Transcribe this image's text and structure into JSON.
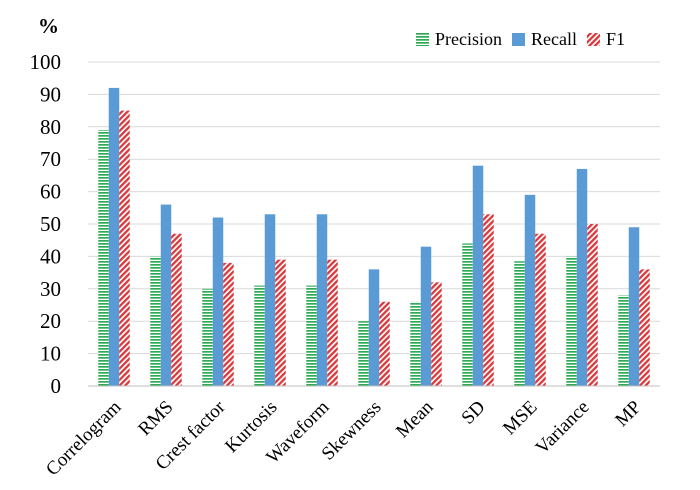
{
  "chart_data": {
    "type": "bar",
    "title": "",
    "xlabel": "",
    "ylabel": "%",
    "ylim": [
      0,
      100
    ],
    "yticks": [
      0,
      10,
      20,
      30,
      40,
      50,
      60,
      70,
      80,
      90,
      100
    ],
    "grid": "horizontal",
    "legend_position": "top-right",
    "categories": [
      "Correlogram",
      "RMS",
      "Crest factor",
      "Kurtosis",
      "Waveform",
      "Skewness",
      "Mean",
      "SD",
      "MSE",
      "Variance",
      "MP"
    ],
    "series": [
      {
        "name": "Precision",
        "color": "#2eaa55",
        "pattern": "horizontal-stripes",
        "values": [
          79,
          40,
          30,
          31,
          31,
          20,
          26,
          44,
          38.5,
          40,
          28
        ]
      },
      {
        "name": "Recall",
        "color": "#5b9bd5",
        "pattern": "solid",
        "values": [
          92,
          56,
          52,
          53,
          53,
          36,
          43,
          68,
          59,
          67,
          49
        ]
      },
      {
        "name": "F1",
        "color": "#d9393b",
        "pattern": "diagonal-stripes",
        "values": [
          85,
          47,
          38,
          39,
          39,
          26,
          32,
          53,
          47,
          50,
          36
        ]
      }
    ]
  }
}
